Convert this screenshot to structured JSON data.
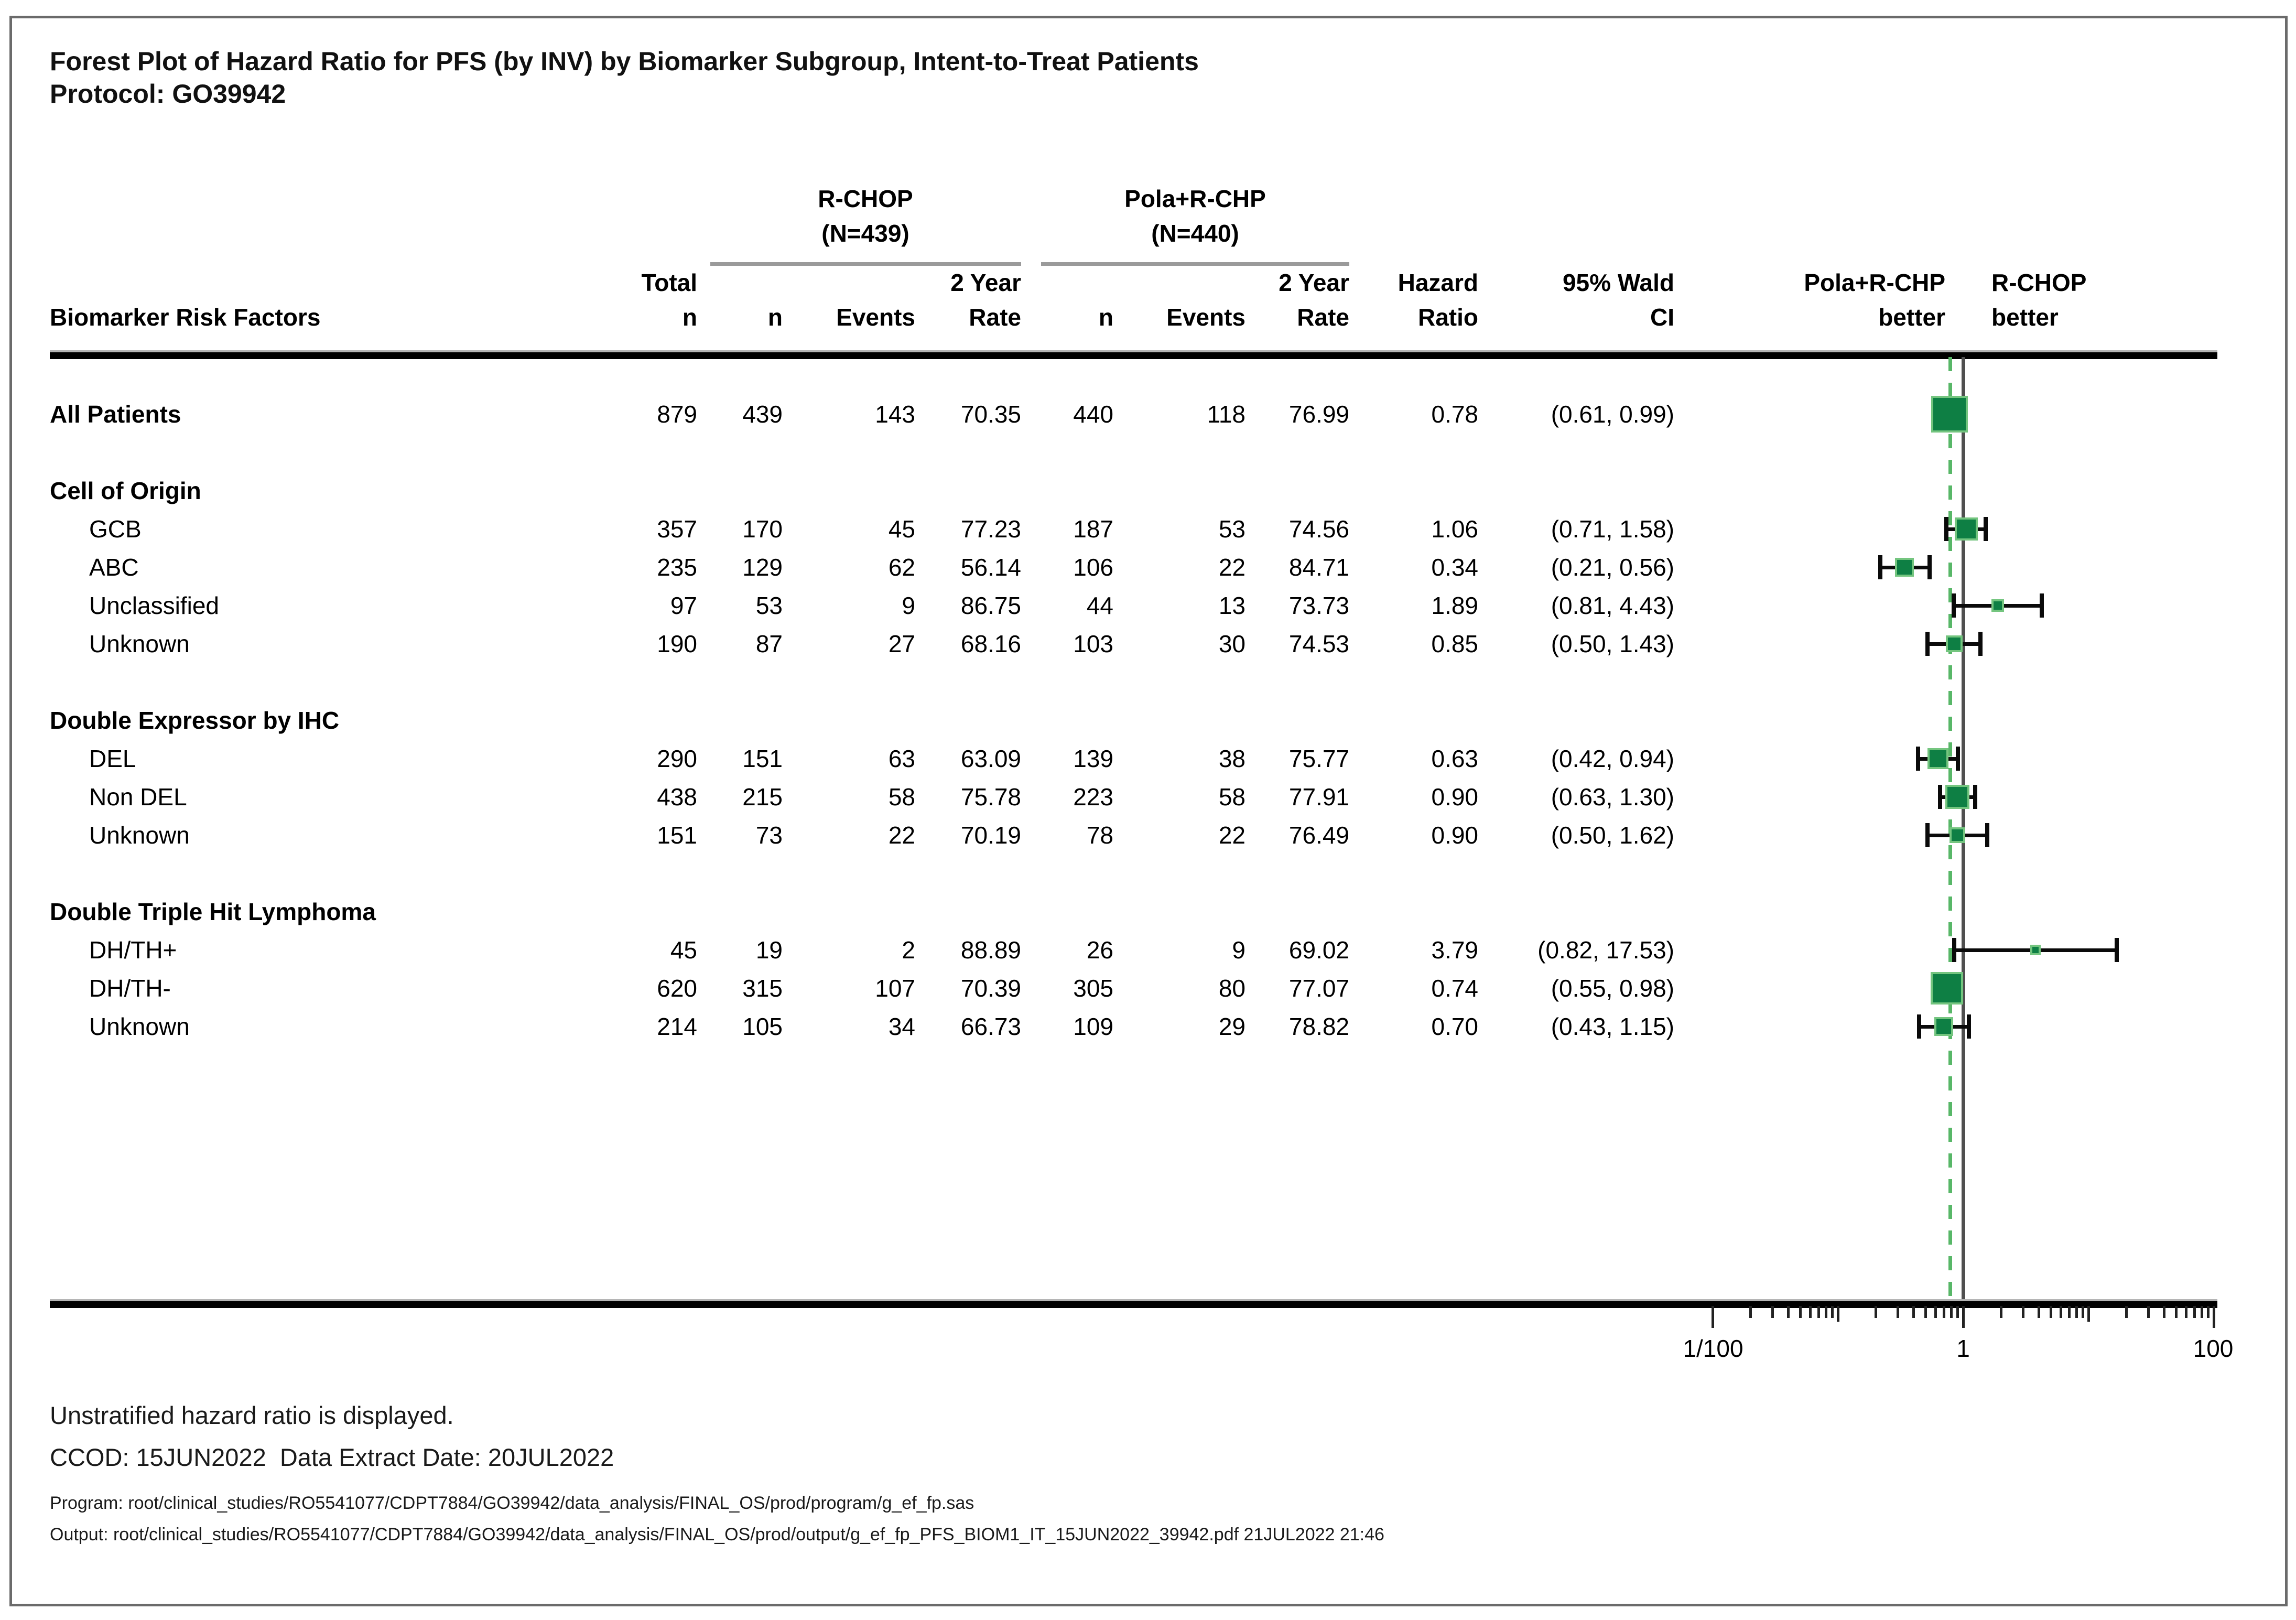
{
  "title": {
    "line1": "Forest Plot of Hazard Ratio for PFS (by INV) by Biomarker Subgroup, Intent-to-Treat Patients",
    "line2": "Protocol: GO39942"
  },
  "arms": {
    "control": {
      "name": "R-CHOP",
      "n_label": "(N=439)"
    },
    "treatment": {
      "name": "Pola+R-CHP",
      "n_label": "(N=440)"
    }
  },
  "columns": {
    "risk_factors": "Biomarker Risk Factors",
    "total": "Total",
    "n": "n",
    "events": "Events",
    "two_year": "2 Year",
    "rate": "Rate",
    "hazard": "Hazard",
    "ratio": "Ratio",
    "wald": "95% Wald",
    "ci": "CI"
  },
  "better_labels": {
    "treatment_line1": "Pola+R-CHP",
    "treatment_line2": "better",
    "control_line1": "R-CHOP",
    "control_line2": "better"
  },
  "axis": {
    "tick_labels": [
      "1/100",
      "1",
      "100"
    ],
    "tick_values": [
      0.01,
      1,
      100
    ],
    "scale": "log10"
  },
  "footnotes": {
    "line1": "Unstratified hazard ratio is displayed.",
    "line2": "CCOD: 15JUN2022  Data Extract Date: 20JUL2022",
    "line3": "Program: root/clinical_studies/RO5541077/CDPT7884/GO39942/data_analysis/FINAL_OS/prod/program/g_ef_fp.sas",
    "line4": "Output: root/clinical_studies/RO5541077/CDPT7884/GO39942/data_analysis/FINAL_OS/prod/output/g_ef_fp_PFS_BIOM1_IT_15JUN2022_39942.pdf 21JUL2022 21:46"
  },
  "colors": {
    "marker_fill": "#0e7f44",
    "marker_edge": "#74c57f",
    "ref_line_solid": "#4f4f4f",
    "ref_line_dashed": "#58b768"
  },
  "chart_data": {
    "type": "forest",
    "x_scale": "log10",
    "x_range": [
      0.01,
      100
    ],
    "reference_line": 1,
    "overall_hr_dashed_line": 0.78,
    "rows": [
      {
        "type": "item",
        "bold": true,
        "indent": false,
        "label": "All Patients",
        "total_n": "879",
        "c_n": "439",
        "c_events": "143",
        "c_rate": "70.35",
        "t_n": "440",
        "t_events": "118",
        "t_rate": "76.99",
        "hr_text": "0.78",
        "ci_text": "(0.61, 0.99)",
        "hr": 0.78,
        "lo": 0.61,
        "hi": 0.99,
        "size": 70
      },
      {
        "type": "spacer"
      },
      {
        "type": "group",
        "label": "Cell of Origin"
      },
      {
        "type": "item",
        "bold": false,
        "indent": true,
        "label": "GCB",
        "total_n": "357",
        "c_n": "170",
        "c_events": "45",
        "c_rate": "77.23",
        "t_n": "187",
        "t_events": "53",
        "t_rate": "74.56",
        "hr_text": "1.06",
        "ci_text": "(0.71, 1.58)",
        "hr": 1.06,
        "lo": 0.71,
        "hi": 1.58,
        "size": 44
      },
      {
        "type": "item",
        "bold": false,
        "indent": true,
        "label": "ABC",
        "total_n": "235",
        "c_n": "129",
        "c_events": "62",
        "c_rate": "56.14",
        "t_n": "106",
        "t_events": "22",
        "t_rate": "84.71",
        "hr_text": "0.34",
        "ci_text": "(0.21, 0.56)",
        "hr": 0.34,
        "lo": 0.21,
        "hi": 0.56,
        "size": 36
      },
      {
        "type": "item",
        "bold": false,
        "indent": true,
        "label": "Unclassified",
        "total_n": "97",
        "c_n": "53",
        "c_events": "9",
        "c_rate": "86.75",
        "t_n": "44",
        "t_events": "13",
        "t_rate": "73.73",
        "hr_text": "1.89",
        "ci_text": "(0.81, 4.43)",
        "hr": 1.89,
        "lo": 0.81,
        "hi": 4.43,
        "size": 24
      },
      {
        "type": "item",
        "bold": false,
        "indent": true,
        "label": "Unknown",
        "total_n": "190",
        "c_n": "87",
        "c_events": "27",
        "c_rate": "68.16",
        "t_n": "103",
        "t_events": "30",
        "t_rate": "74.53",
        "hr_text": "0.85",
        "ci_text": "(0.50, 1.43)",
        "hr": 0.85,
        "lo": 0.5,
        "hi": 1.43,
        "size": 32
      },
      {
        "type": "spacer"
      },
      {
        "type": "group",
        "label": "Double Expressor by IHC"
      },
      {
        "type": "item",
        "bold": false,
        "indent": true,
        "label": "DEL",
        "total_n": "290",
        "c_n": "151",
        "c_events": "63",
        "c_rate": "63.09",
        "t_n": "139",
        "t_events": "38",
        "t_rate": "75.77",
        "hr_text": "0.63",
        "ci_text": "(0.42, 0.94)",
        "hr": 0.63,
        "lo": 0.42,
        "hi": 0.94,
        "size": 40
      },
      {
        "type": "item",
        "bold": false,
        "indent": true,
        "label": "Non DEL",
        "total_n": "438",
        "c_n": "215",
        "c_events": "58",
        "c_rate": "75.78",
        "t_n": "223",
        "t_events": "58",
        "t_rate": "77.91",
        "hr_text": "0.90",
        "ci_text": "(0.63, 1.30)",
        "hr": 0.9,
        "lo": 0.63,
        "hi": 1.3,
        "size": 46
      },
      {
        "type": "item",
        "bold": false,
        "indent": true,
        "label": "Unknown",
        "total_n": "151",
        "c_n": "73",
        "c_events": "22",
        "c_rate": "70.19",
        "t_n": "78",
        "t_events": "22",
        "t_rate": "76.49",
        "hr_text": "0.90",
        "ci_text": "(0.50, 1.62)",
        "hr": 0.9,
        "lo": 0.5,
        "hi": 1.62,
        "size": 30
      },
      {
        "type": "spacer"
      },
      {
        "type": "group",
        "label": "Double Triple Hit Lymphoma"
      },
      {
        "type": "item",
        "bold": false,
        "indent": true,
        "label": "DH/TH+",
        "total_n": "45",
        "c_n": "19",
        "c_events": "2",
        "c_rate": "88.89",
        "t_n": "26",
        "t_events": "9",
        "t_rate": "69.02",
        "hr_text": "3.79",
        "ci_text": "(0.82, 17.53)",
        "hr": 3.79,
        "lo": 0.82,
        "hi": 17.53,
        "size": 20
      },
      {
        "type": "item",
        "bold": false,
        "indent": true,
        "label": "DH/TH-",
        "total_n": "620",
        "c_n": "315",
        "c_events": "107",
        "c_rate": "70.39",
        "t_n": "305",
        "t_events": "80",
        "t_rate": "77.07",
        "hr_text": "0.74",
        "ci_text": "(0.55, 0.98)",
        "hr": 0.74,
        "lo": 0.55,
        "hi": 0.98,
        "size": 62
      },
      {
        "type": "item",
        "bold": false,
        "indent": true,
        "label": "Unknown",
        "total_n": "214",
        "c_n": "105",
        "c_events": "34",
        "c_rate": "66.73",
        "t_n": "109",
        "t_events": "29",
        "t_rate": "78.82",
        "hr_text": "0.70",
        "ci_text": "(0.43, 1.15)",
        "hr": 0.7,
        "lo": 0.43,
        "hi": 1.15,
        "size": 36
      }
    ]
  }
}
